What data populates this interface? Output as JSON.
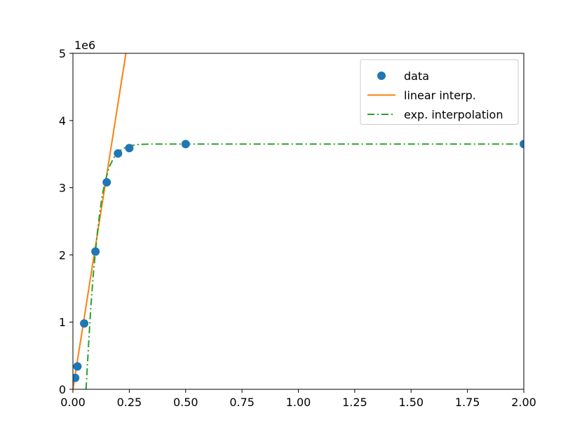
{
  "chart_data": {
    "type": "line",
    "title": "",
    "xlabel": "",
    "ylabel": "",
    "xlim": [
      0,
      2
    ],
    "ylim": [
      0,
      5
    ],
    "y_offset_label": "1e6",
    "x_ticks": [
      {
        "value": 0,
        "label": "0.00"
      },
      {
        "value": 0.25,
        "label": "0.25"
      },
      {
        "value": 0.5,
        "label": "0.50"
      },
      {
        "value": 0.75,
        "label": "0.75"
      },
      {
        "value": 1.0,
        "label": "1.00"
      },
      {
        "value": 1.25,
        "label": "1.25"
      },
      {
        "value": 1.5,
        "label": "1.50"
      },
      {
        "value": 1.75,
        "label": "1.75"
      },
      {
        "value": 2.0,
        "label": "2.00"
      }
    ],
    "y_ticks": [
      {
        "value": 0,
        "label": "0"
      },
      {
        "value": 1,
        "label": "1"
      },
      {
        "value": 2,
        "label": "2"
      },
      {
        "value": 3,
        "label": "3"
      },
      {
        "value": 4,
        "label": "4"
      },
      {
        "value": 5,
        "label": "5"
      }
    ],
    "grid": false,
    "legend_position": "upper-right",
    "series": [
      {
        "name": "data",
        "kind": "scatter",
        "color": "#1f77b4",
        "x": [
          0.01,
          0.02,
          0.05,
          0.1,
          0.15,
          0.2,
          0.25,
          0.5,
          2.0
        ],
        "y": [
          0.17,
          0.34,
          0.98,
          2.05,
          3.08,
          3.51,
          3.59,
          3.65,
          3.65
        ]
      },
      {
        "name": "linear interp.",
        "kind": "line",
        "style": "solid",
        "color": "#ff7f0e",
        "x": [
          0.0,
          0.235
        ],
        "y": [
          0.0,
          5.0
        ]
      },
      {
        "name": "exp. interpolation",
        "kind": "line",
        "style": "dashdot",
        "color": "#2ca02c",
        "x": [
          0.058,
          0.065,
          0.07,
          0.08,
          0.09,
          0.1,
          0.11,
          0.12,
          0.13,
          0.14,
          0.15,
          0.16,
          0.18,
          0.2,
          0.22,
          0.25,
          0.28,
          0.3,
          0.35,
          0.4,
          0.5,
          0.75,
          1.0,
          1.5,
          2.0
        ],
        "y": [
          0.0,
          0.4,
          0.7,
          1.25,
          1.7,
          2.05,
          2.38,
          2.65,
          2.88,
          3.05,
          3.18,
          3.3,
          3.44,
          3.53,
          3.58,
          3.62,
          3.64,
          3.645,
          3.65,
          3.65,
          3.65,
          3.65,
          3.65,
          3.65,
          3.65
        ]
      }
    ]
  }
}
